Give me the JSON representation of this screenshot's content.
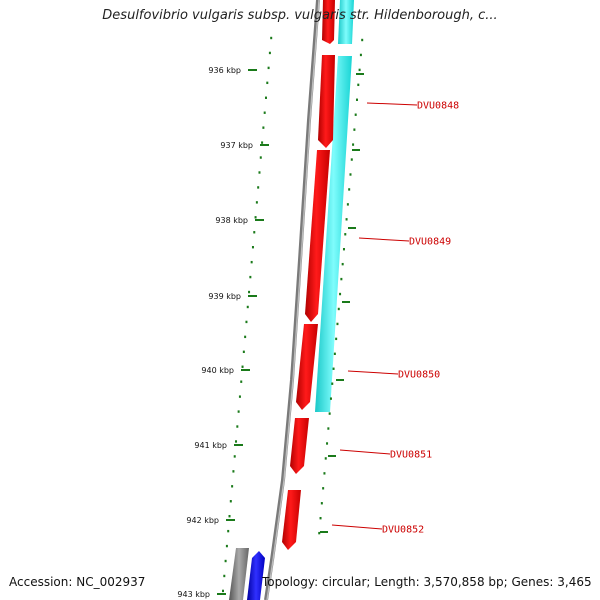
{
  "title": "Desulfovibrio vulgaris subsp. vulgaris str. Hildenborough, c...",
  "ruler": {
    "ticks": [
      {
        "label": "936 kbp"
      },
      {
        "label": "937 kbp"
      },
      {
        "label": "938 kbp"
      },
      {
        "label": "939 kbp"
      },
      {
        "label": "940 kbp"
      },
      {
        "label": "941 kbp"
      },
      {
        "label": "942 kbp"
      },
      {
        "label": "943 kbp"
      }
    ]
  },
  "genes": [
    {
      "label": "DVU0848"
    },
    {
      "label": "DVU0849"
    },
    {
      "label": "DVU0850"
    },
    {
      "label": "DVU0851"
    },
    {
      "label": "DVU0852"
    }
  ],
  "footer": {
    "accession": "Accession: NC_002937",
    "summary": "Topology: circular; Length: 3,570,858 bp; Genes: 3,465"
  },
  "colors": {
    "ruler": "#1a7a1a",
    "gene_label": "#cc0000",
    "cds": "#ff0000",
    "cds_alt": "#00ffff",
    "backbone": "#888888",
    "blue_feature": "#0000ff"
  }
}
